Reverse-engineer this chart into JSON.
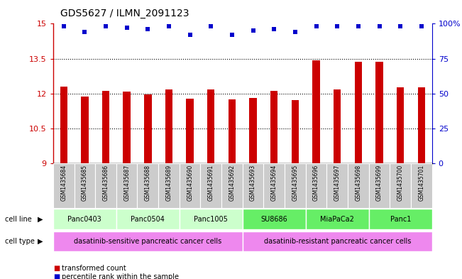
{
  "title": "GDS5627 / ILMN_2091123",
  "samples": [
    "GSM1435684",
    "GSM1435685",
    "GSM1435686",
    "GSM1435687",
    "GSM1435688",
    "GSM1435689",
    "GSM1435690",
    "GSM1435691",
    "GSM1435692",
    "GSM1435693",
    "GSM1435694",
    "GSM1435695",
    "GSM1435696",
    "GSM1435697",
    "GSM1435698",
    "GSM1435699",
    "GSM1435700",
    "GSM1435701"
  ],
  "bar_values": [
    12.28,
    11.88,
    12.1,
    12.08,
    11.95,
    12.18,
    11.78,
    12.16,
    11.74,
    11.82,
    12.12,
    11.72,
    13.42,
    12.16,
    13.36,
    13.36,
    12.25,
    12.27
  ],
  "percentile_values": [
    98,
    94,
    98,
    97,
    96,
    98,
    92,
    98,
    92,
    95,
    96,
    94,
    98,
    98,
    98,
    98,
    98,
    98
  ],
  "bar_color": "#CC0000",
  "percentile_color": "#0000CC",
  "ylim_left": [
    9,
    15
  ],
  "ylim_right": [
    0,
    100
  ],
  "yticks_left": [
    9,
    10.5,
    12,
    13.5,
    15
  ],
  "ytick_labels_left": [
    "9",
    "10.5",
    "12",
    "13.5",
    "15"
  ],
  "yticks_right": [
    0,
    25,
    50,
    75,
    100
  ],
  "ytick_labels_right": [
    "0",
    "25",
    "50",
    "75",
    "100%"
  ],
  "cell_lines": [
    {
      "label": "Panc0403",
      "start": 0,
      "end": 2,
      "color": "#ccffcc"
    },
    {
      "label": "Panc0504",
      "start": 3,
      "end": 5,
      "color": "#ccffcc"
    },
    {
      "label": "Panc1005",
      "start": 6,
      "end": 8,
      "color": "#ccffcc"
    },
    {
      "label": "SU8686",
      "start": 9,
      "end": 11,
      "color": "#66ee66"
    },
    {
      "label": "MiaPaCa2",
      "start": 12,
      "end": 14,
      "color": "#66ee66"
    },
    {
      "label": "Panc1",
      "start": 15,
      "end": 17,
      "color": "#66ee66"
    }
  ],
  "cell_types": [
    {
      "label": "dasatinib-sensitive pancreatic cancer cells",
      "start": 0,
      "end": 8,
      "color": "#ee88ee"
    },
    {
      "label": "dasatinib-resistant pancreatic cancer cells",
      "start": 9,
      "end": 17,
      "color": "#ee88ee"
    }
  ],
  "legend_items": [
    {
      "label": "transformed count",
      "color": "#CC0000"
    },
    {
      "label": "percentile rank within the sample",
      "color": "#0000CC"
    }
  ],
  "cell_line_label": "cell line",
  "cell_type_label": "cell type",
  "background_color": "#ffffff",
  "tick_bg_color": "#cccccc"
}
